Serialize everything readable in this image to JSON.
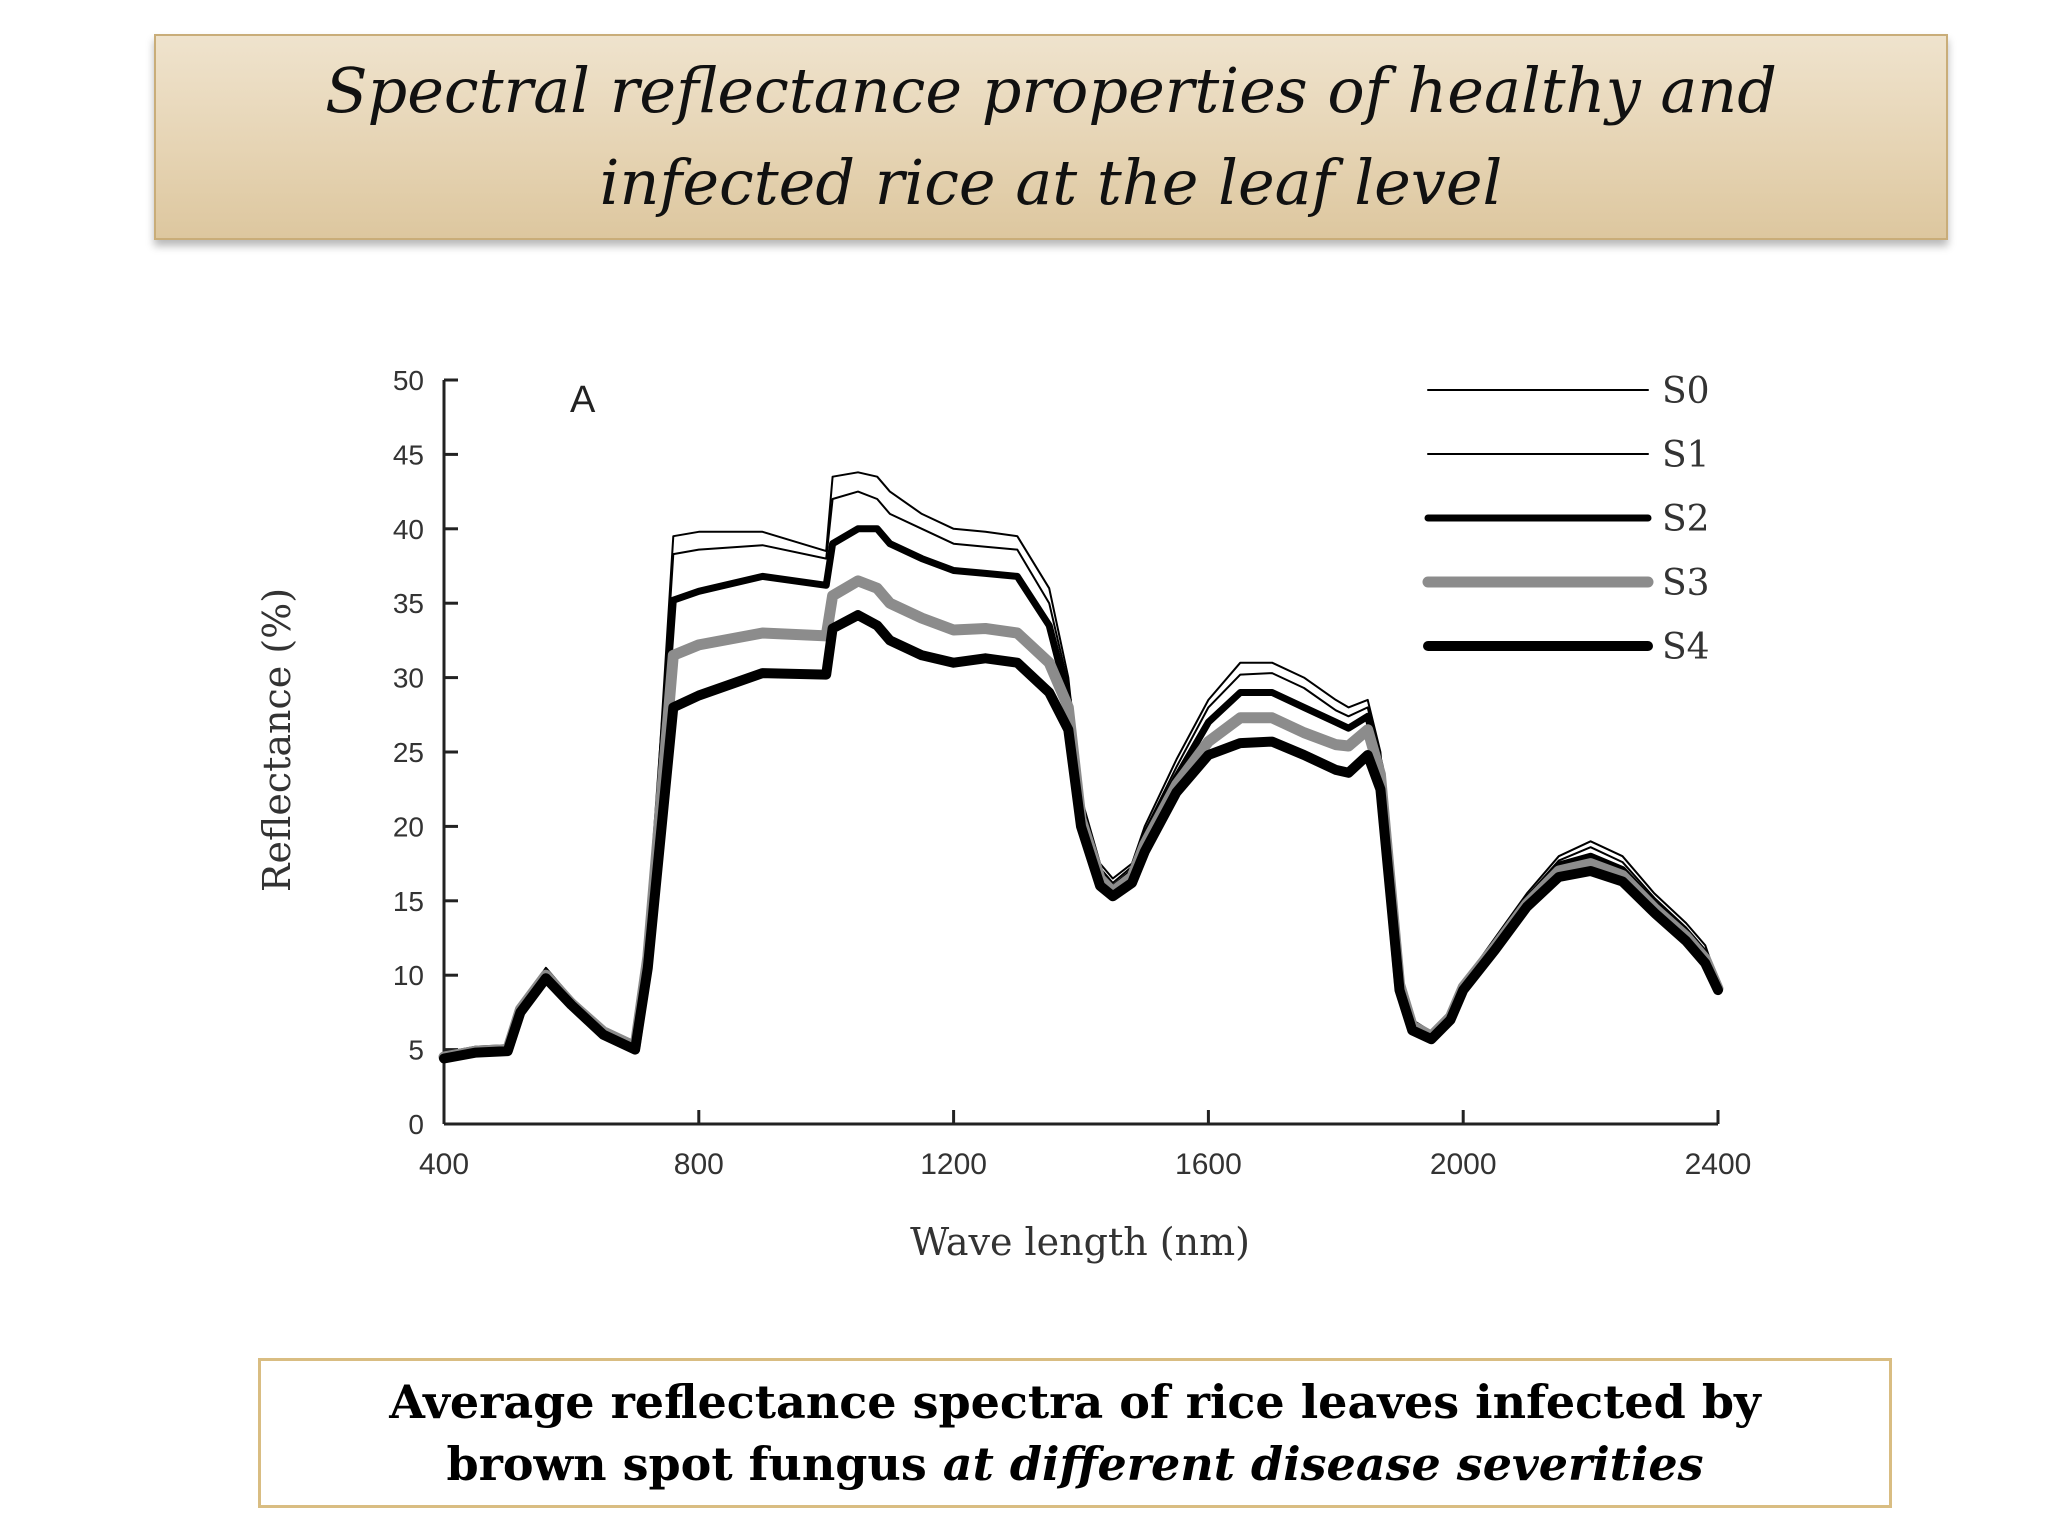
{
  "slide": {
    "title_lines": [
      "Spectral reflectance properties of healthy and",
      "infected rice at the leaf level"
    ],
    "caption": {
      "line1": "Average reflectance spectra of rice leaves infected by",
      "line2_plain": "brown spot fungus",
      "line2_italic": "at different disease severities"
    }
  },
  "chart_data": {
    "type": "line",
    "panel_label": "A",
    "xlabel": "Wave length (nm)",
    "ylabel": "Reflectance (%)",
    "xlim": [
      400,
      2400
    ],
    "ylim": [
      0,
      50
    ],
    "xticks": [
      400,
      800,
      1200,
      1600,
      2000,
      2400
    ],
    "yticks": [
      0,
      5,
      10,
      15,
      20,
      25,
      30,
      35,
      40,
      45,
      50
    ],
    "grid": false,
    "legend_position": "top-right",
    "x": [
      400,
      450,
      500,
      520,
      560,
      600,
      650,
      700,
      720,
      760,
      800,
      900,
      1000,
      1010,
      1050,
      1080,
      1100,
      1150,
      1200,
      1250,
      1300,
      1350,
      1380,
      1400,
      1430,
      1450,
      1480,
      1500,
      1550,
      1600,
      1650,
      1700,
      1750,
      1800,
      1820,
      1850,
      1870,
      1900,
      1920,
      1950,
      1980,
      2000,
      2050,
      2100,
      2150,
      2200,
      2250,
      2300,
      2350,
      2380,
      2400
    ],
    "series": [
      {
        "name": "S0",
        "color": "#000000",
        "line": "thin",
        "values": [
          4.8,
          5.2,
          5.3,
          8.0,
          10.5,
          8.5,
          6.5,
          5.5,
          12,
          39.5,
          39.8,
          39.8,
          38.5,
          43.5,
          43.8,
          43.5,
          42.5,
          41.0,
          40.0,
          39.8,
          39.5,
          36,
          30,
          22,
          17.5,
          16.5,
          17.5,
          20,
          24.5,
          28.5,
          31,
          31,
          30,
          28.5,
          28.0,
          28.5,
          25,
          10,
          7,
          6.2,
          7.5,
          9.5,
          12.5,
          15.5,
          18,
          19,
          18,
          15.5,
          13.5,
          12,
          9.5
        ]
      },
      {
        "name": "S1",
        "color": "#000000",
        "line": "thin",
        "values": [
          4.7,
          5.1,
          5.2,
          7.9,
          10.3,
          8.4,
          6.4,
          5.4,
          11.8,
          38.3,
          38.6,
          38.9,
          38.0,
          42.0,
          42.5,
          42.0,
          41.0,
          40.0,
          39.0,
          38.8,
          38.6,
          35,
          29.5,
          21.5,
          17.2,
          16.2,
          17.3,
          19.7,
          24,
          28,
          30.2,
          30.3,
          29.3,
          27.8,
          27.4,
          28.0,
          24.5,
          9.8,
          6.9,
          6.1,
          7.4,
          9.4,
          12.3,
          15.3,
          17.7,
          18.6,
          17.6,
          15.2,
          13.2,
          11.7,
          9.3
        ]
      },
      {
        "name": "S2",
        "color": "#000000",
        "line": "thick",
        "values": [
          4.6,
          5.0,
          5.1,
          7.8,
          10.1,
          8.2,
          6.3,
          5.3,
          11.5,
          35.2,
          35.8,
          36.8,
          36.2,
          39.0,
          40.0,
          40.0,
          39.0,
          38.0,
          37.2,
          37.0,
          36.8,
          33.5,
          28.5,
          21,
          16.8,
          15.8,
          16.9,
          19.2,
          23.3,
          27,
          29,
          29,
          28,
          27,
          26.6,
          27.4,
          24,
          9.6,
          6.7,
          6.0,
          7.3,
          9.3,
          12.1,
          15.0,
          17.4,
          18.0,
          17.1,
          14.8,
          12.9,
          11.4,
          9.2
        ]
      },
      {
        "name": "S3",
        "color": "#8c8c8c",
        "line": "thick",
        "values": [
          4.5,
          4.9,
          5.0,
          7.7,
          10.0,
          8.1,
          6.2,
          5.2,
          11.2,
          31.5,
          32.2,
          33.0,
          32.8,
          35.5,
          36.5,
          36.0,
          35.0,
          34.0,
          33.2,
          33.3,
          33.0,
          31.0,
          28.0,
          20.5,
          16.5,
          15.6,
          16.6,
          18.8,
          22.8,
          25.7,
          27.3,
          27.3,
          26.3,
          25.5,
          25.4,
          26.5,
          23.5,
          9.4,
          6.6,
          5.9,
          7.2,
          9.2,
          11.9,
          14.8,
          17.0,
          17.5,
          16.7,
          14.5,
          12.6,
          11.1,
          9.1
        ]
      },
      {
        "name": "S4",
        "color": "#000000",
        "line": "thickest",
        "values": [
          4.4,
          4.8,
          4.9,
          7.5,
          9.8,
          8.0,
          6.0,
          5.0,
          10.5,
          28.0,
          28.8,
          30.3,
          30.2,
          33.3,
          34.2,
          33.5,
          32.5,
          31.5,
          31.0,
          31.3,
          31.0,
          29.0,
          26.5,
          20.0,
          16.0,
          15.3,
          16.2,
          18.3,
          22.3,
          24.8,
          25.6,
          25.7,
          24.8,
          23.8,
          23.6,
          24.8,
          22.5,
          9.0,
          6.3,
          5.7,
          7.0,
          9.0,
          11.7,
          14.6,
          16.6,
          17.0,
          16.3,
          14.2,
          12.3,
          10.8,
          9.0
        ]
      }
    ]
  }
}
